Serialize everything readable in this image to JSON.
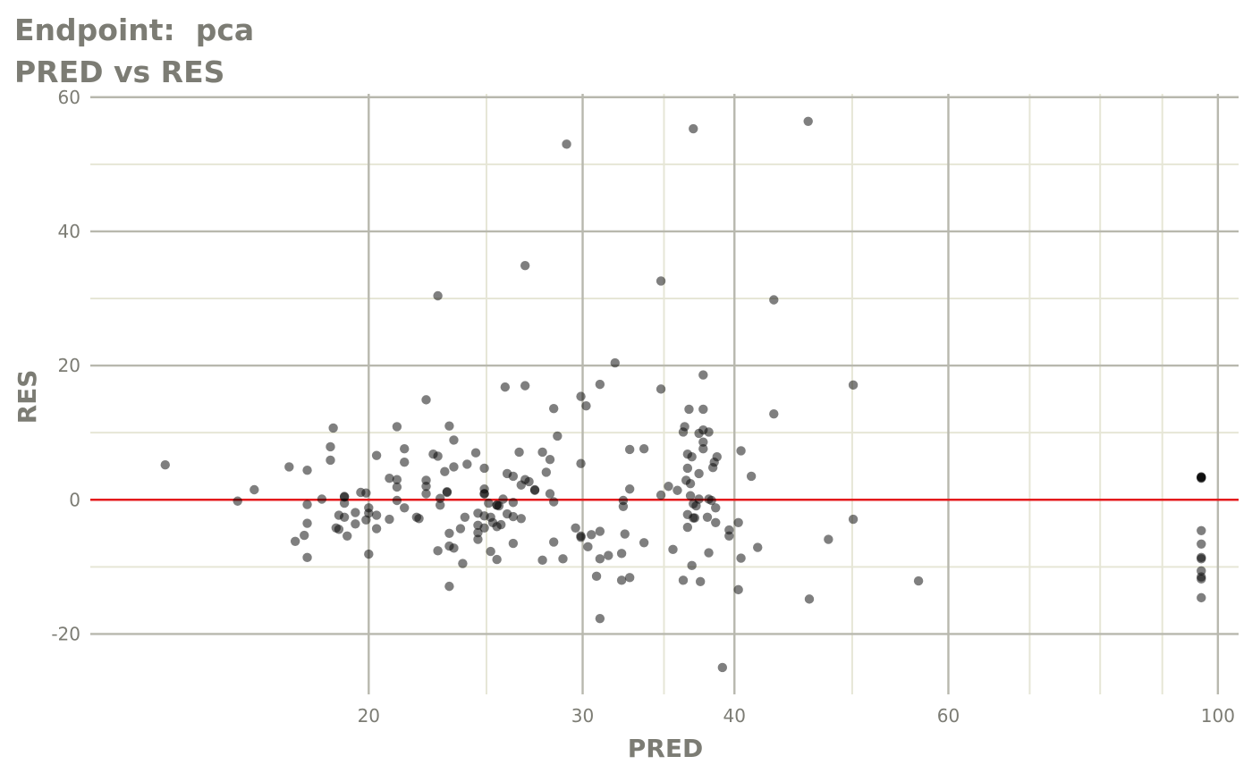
{
  "chart_data": {
    "type": "scatter",
    "title": "Endpoint:  pca",
    "subtitle": "PRED vs RES",
    "xlabel": "PRED",
    "ylabel": "RES",
    "x_scale": "log10",
    "xlim": [
      11.8,
      104
    ],
    "ylim": [
      -29,
      60.5
    ],
    "x_ticks": [
      20,
      30,
      40,
      60,
      100
    ],
    "x_tick_labels": [
      "20",
      "30",
      "40",
      "60",
      "100"
    ],
    "y_ticks": [
      -20,
      0,
      20,
      40,
      60
    ],
    "y_tick_labels": [
      "-20",
      "0",
      "20",
      "40",
      "60"
    ],
    "grid": true,
    "reference_line": {
      "y": 0,
      "color": "#e41a1c"
    },
    "colors": {
      "points": "#000000",
      "grid_major": "#b8b8ae",
      "grid_minor": "#e6e6d6",
      "ref_line": "#e41a1c",
      "text": "#7c7c74"
    },
    "points": [
      [
        13.6,
        5.2
      ],
      [
        15.6,
        -0.2
      ],
      [
        16.1,
        1.5
      ],
      [
        17.2,
        4.9
      ],
      [
        17.4,
        -6.2
      ],
      [
        17.7,
        -5.3
      ],
      [
        17.8,
        4.4
      ],
      [
        17.8,
        -0.7
      ],
      [
        17.8,
        -3.5
      ],
      [
        17.8,
        -8.6
      ],
      [
        18.3,
        0.1
      ],
      [
        18.6,
        7.9
      ],
      [
        18.6,
        5.9
      ],
      [
        18.7,
        10.7
      ],
      [
        18.8,
        -4.2
      ],
      [
        18.9,
        -2.3
      ],
      [
        18.9,
        -4.4
      ],
      [
        19.1,
        0.5
      ],
      [
        19.1,
        0.4
      ],
      [
        19.1,
        -0.5
      ],
      [
        19.1,
        -2.6
      ],
      [
        19.2,
        -5.4
      ],
      [
        19.5,
        -3.6
      ],
      [
        19.5,
        -1.9
      ],
      [
        19.7,
        1.1
      ],
      [
        19.9,
        1.0
      ],
      [
        19.9,
        -3.0
      ],
      [
        20.0,
        -8.1
      ],
      [
        20.0,
        -1.2
      ],
      [
        20.0,
        -2.0
      ],
      [
        20.3,
        6.6
      ],
      [
        20.3,
        -2.3
      ],
      [
        20.3,
        -4.3
      ],
      [
        20.8,
        3.2
      ],
      [
        20.8,
        -2.9
      ],
      [
        21.1,
        10.9
      ],
      [
        21.1,
        3.0
      ],
      [
        21.1,
        1.9
      ],
      [
        21.1,
        -0.1
      ],
      [
        21.4,
        7.6
      ],
      [
        21.4,
        5.6
      ],
      [
        21.4,
        -1.2
      ],
      [
        21.9,
        -2.6
      ],
      [
        22.0,
        -2.8
      ],
      [
        22.3,
        14.9
      ],
      [
        22.3,
        2.9
      ],
      [
        22.3,
        2.0
      ],
      [
        22.3,
        0.9
      ],
      [
        22.6,
        6.8
      ],
      [
        22.8,
        30.4
      ],
      [
        22.8,
        6.5
      ],
      [
        22.8,
        -7.6
      ],
      [
        22.9,
        0.2
      ],
      [
        22.9,
        -0.8
      ],
      [
        23.1,
        4.2
      ],
      [
        23.2,
        1.2
      ],
      [
        23.2,
        1.1
      ],
      [
        23.3,
        11.0
      ],
      [
        23.3,
        -5.0
      ],
      [
        23.3,
        -6.9
      ],
      [
        23.3,
        -12.9
      ],
      [
        23.5,
        8.9
      ],
      [
        23.5,
        4.9
      ],
      [
        23.5,
        -7.2
      ],
      [
        23.8,
        -4.3
      ],
      [
        23.9,
        -9.5
      ],
      [
        24.0,
        -2.6
      ],
      [
        24.1,
        5.3
      ],
      [
        24.5,
        7.0
      ],
      [
        24.6,
        -2.0
      ],
      [
        24.6,
        -4.9
      ],
      [
        24.6,
        -5.9
      ],
      [
        24.6,
        -3.8
      ],
      [
        24.9,
        4.7
      ],
      [
        24.9,
        1.6
      ],
      [
        24.9,
        0.9
      ],
      [
        24.9,
        0.9
      ],
      [
        24.9,
        -2.4
      ],
      [
        24.9,
        -4.2
      ],
      [
        25.1,
        -0.5
      ],
      [
        25.2,
        -7.7
      ],
      [
        25.2,
        -2.6
      ],
      [
        25.3,
        -3.4
      ],
      [
        25.5,
        -0.8
      ],
      [
        25.5,
        -0.8
      ],
      [
        25.5,
        -4.0
      ],
      [
        25.5,
        -8.9
      ],
      [
        25.6,
        -0.9
      ],
      [
        25.7,
        -3.7
      ],
      [
        25.8,
        0.1
      ],
      [
        25.9,
        16.8
      ],
      [
        26.0,
        3.9
      ],
      [
        26.0,
        -2.1
      ],
      [
        26.3,
        3.5
      ],
      [
        26.3,
        -0.4
      ],
      [
        26.3,
        -2.5
      ],
      [
        26.3,
        -6.5
      ],
      [
        26.6,
        7.1
      ],
      [
        26.7,
        2.2
      ],
      [
        26.7,
        -2.8
      ],
      [
        26.9,
        34.9
      ],
      [
        26.9,
        17.0
      ],
      [
        26.9,
        3.0
      ],
      [
        27.1,
        2.7
      ],
      [
        27.4,
        1.5
      ],
      [
        27.4,
        1.4
      ],
      [
        27.8,
        7.1
      ],
      [
        27.8,
        -9.0
      ],
      [
        28.0,
        4.1
      ],
      [
        28.2,
        6.0
      ],
      [
        28.2,
        0.9
      ],
      [
        28.4,
        13.6
      ],
      [
        28.4,
        -0.3
      ],
      [
        28.4,
        -6.3
      ],
      [
        28.6,
        9.5
      ],
      [
        28.9,
        -8.8
      ],
      [
        29.1,
        53.0
      ],
      [
        29.6,
        -4.2
      ],
      [
        29.9,
        15.4
      ],
      [
        29.9,
        5.4
      ],
      [
        29.9,
        -5.4
      ],
      [
        29.9,
        -5.6
      ],
      [
        30.2,
        14.0
      ],
      [
        30.3,
        -7.0
      ],
      [
        30.5,
        -5.2
      ],
      [
        30.8,
        -11.4
      ],
      [
        31.0,
        17.2
      ],
      [
        31.0,
        -4.7
      ],
      [
        31.0,
        -8.8
      ],
      [
        31.0,
        -17.7
      ],
      [
        31.5,
        -8.3
      ],
      [
        31.9,
        20.4
      ],
      [
        32.3,
        -12.0
      ],
      [
        32.3,
        -8.0
      ],
      [
        32.4,
        -0.1
      ],
      [
        32.4,
        -1.0
      ],
      [
        32.5,
        -5.1
      ],
      [
        32.8,
        7.5
      ],
      [
        32.8,
        1.6
      ],
      [
        32.8,
        -11.6
      ],
      [
        33.7,
        7.6
      ],
      [
        33.7,
        -6.4
      ],
      [
        34.8,
        32.6
      ],
      [
        34.8,
        16.5
      ],
      [
        34.8,
        0.7
      ],
      [
        35.3,
        2.0
      ],
      [
        35.6,
        -7.4
      ],
      [
        35.9,
        1.4
      ],
      [
        36.3,
        10.1
      ],
      [
        36.3,
        -12.0
      ],
      [
        36.4,
        10.9
      ],
      [
        36.5,
        2.9
      ],
      [
        36.6,
        6.8
      ],
      [
        36.6,
        4.7
      ],
      [
        36.6,
        -2.2
      ],
      [
        36.6,
        -4.1
      ],
      [
        36.7,
        13.5
      ],
      [
        36.8,
        0.6
      ],
      [
        36.8,
        2.4
      ],
      [
        36.9,
        6.4
      ],
      [
        36.9,
        -9.8
      ],
      [
        37.0,
        55.3
      ],
      [
        37.0,
        -0.6
      ],
      [
        37.0,
        -2.7
      ],
      [
        37.1,
        -2.7
      ],
      [
        37.2,
        -0.9
      ],
      [
        37.4,
        9.9
      ],
      [
        37.4,
        3.9
      ],
      [
        37.4,
        0.1
      ],
      [
        37.5,
        -12.2
      ],
      [
        37.7,
        18.6
      ],
      [
        37.7,
        13.5
      ],
      [
        37.7,
        10.4
      ],
      [
        37.7,
        8.6
      ],
      [
        37.7,
        7.6
      ],
      [
        38.0,
        -2.6
      ],
      [
        38.1,
        10.1
      ],
      [
        38.1,
        -7.9
      ],
      [
        38.1,
        0.1
      ],
      [
        38.3,
        -0.1
      ],
      [
        38.4,
        4.8
      ],
      [
        38.5,
        5.6
      ],
      [
        38.6,
        -1.2
      ],
      [
        38.6,
        -3.4
      ],
      [
        38.7,
        6.4
      ],
      [
        39.1,
        -25.0
      ],
      [
        39.6,
        -4.5
      ],
      [
        39.6,
        -5.4
      ],
      [
        40.3,
        -3.4
      ],
      [
        40.3,
        -13.4
      ],
      [
        40.5,
        7.3
      ],
      [
        40.5,
        -8.7
      ],
      [
        41.3,
        3.5
      ],
      [
        41.8,
        -7.1
      ],
      [
        43.1,
        29.8
      ],
      [
        43.1,
        12.8
      ],
      [
        46.0,
        56.4
      ],
      [
        46.1,
        -14.8
      ],
      [
        47.8,
        -5.9
      ],
      [
        50.1,
        17.1
      ],
      [
        50.1,
        -2.9
      ],
      [
        56.7,
        -12.1
      ],
      [
        96.9,
        3.4
      ],
      [
        96.9,
        3.3
      ],
      [
        96.9,
        3.2
      ],
      [
        96.9,
        3.4
      ],
      [
        96.9,
        -4.6
      ],
      [
        96.9,
        -6.6
      ],
      [
        96.9,
        -8.6
      ],
      [
        96.9,
        -8.8
      ],
      [
        96.9,
        -10.6
      ],
      [
        96.9,
        -11.5
      ],
      [
        96.9,
        -11.8
      ],
      [
        96.9,
        -14.6
      ]
    ]
  }
}
